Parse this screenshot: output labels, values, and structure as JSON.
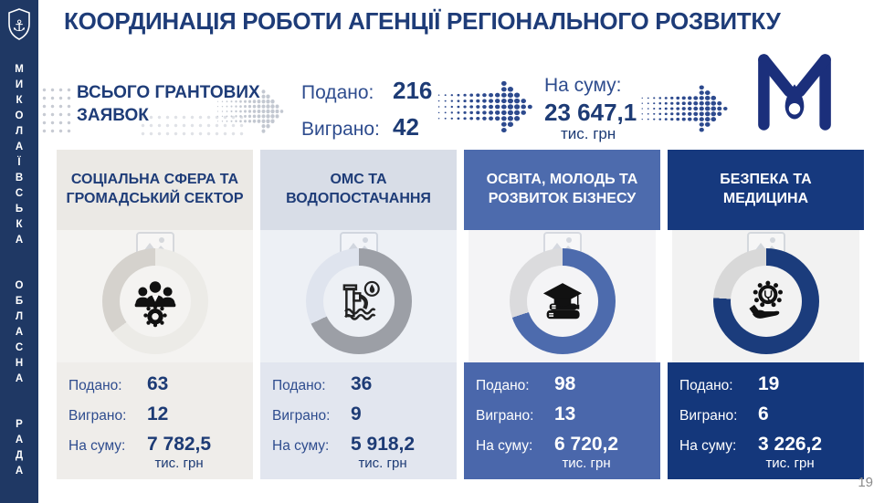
{
  "slide": {
    "title": "КООРДИНАЦІЯ РОБОТИ АГЕНЦІЇ РЕГІОНАЛЬНОГО РОЗВИТКУ",
    "page_number": "19"
  },
  "sidebar": {
    "org_name": "МИКОЛАЇВСЬКА ОБЛАСНА РАДА",
    "crest_icon": "city-crest-anchor-icon"
  },
  "logo": {
    "name": "mykolaiv-m-drop-logo",
    "color": "#1B2F7B"
  },
  "summary": {
    "label": "ВСЬОГО ГРАНТОВИХ ЗАЯВОК",
    "submitted_label": "Подано:",
    "submitted_value": "216",
    "won_label": "Виграно:",
    "won_value": "42",
    "sum_label": "На суму:",
    "sum_value": "23 647,1",
    "sum_unit": "тис. грн"
  },
  "cards": [
    {
      "title": "СОЦІАЛЬНА СФЕРА ТА ГРОМАДСЬКИЙ СЕКТОР",
      "icon": "team-gear-icon",
      "submitted_label": "Подано:",
      "submitted": "63",
      "won_label": "Виграно:",
      "won": "12",
      "sum_label": "На суму:",
      "sum": "7 782,5",
      "unit": "тис. грн",
      "header_color": "#EBE9E5"
    },
    {
      "title": "ОМС ТА ВОДОПОСТАЧАННЯ",
      "icon": "water-supply-icon",
      "submitted_label": "Подано:",
      "submitted": "36",
      "won_label": "Виграно:",
      "won": "9",
      "sum_label": "На суму:",
      "sum": "5 918,2",
      "unit": "тис. грн",
      "header_color": "#D8DDE7"
    },
    {
      "title": "ОСВІТА, МОЛОДЬ ТА РОЗВИТОК БІЗНЕСУ",
      "icon": "education-books-icon",
      "submitted_label": "Подано:",
      "submitted": "98",
      "won_label": "Виграно:",
      "won": "13",
      "sum_label": "На суму:",
      "sum": "6 720,2",
      "unit": "тис. грн",
      "header_color": "#4D6BAD"
    },
    {
      "title": "БЕЗПЕКА ТА МЕДИЦИНА",
      "icon": "medical-gear-hand-icon",
      "submitted_label": "Подано:",
      "submitted": "19",
      "won_label": "Виграно:",
      "won": "6",
      "sum_label": "На суму:",
      "sum": "3 226,2",
      "unit": "тис. грн",
      "header_color": "#16397E"
    }
  ],
  "colors": {
    "sidebar_navy": "#1F3864",
    "title_blue": "#1E3C78",
    "mid_blue": "#4D6BAD",
    "dark_card_blue": "#16397E",
    "dot_arrow_blue": "#2D4A8E",
    "dot_arrow_gray": "#C3C8D1"
  }
}
